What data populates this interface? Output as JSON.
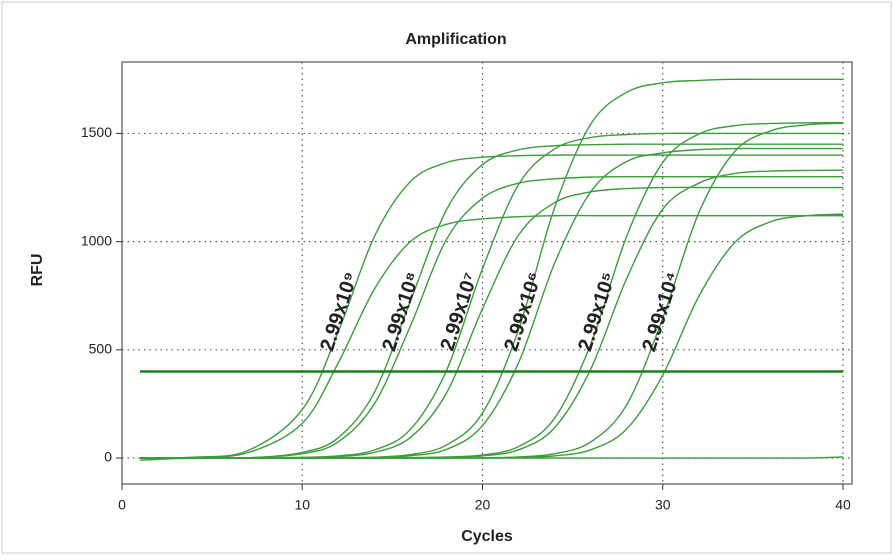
{
  "chart_data": {
    "type": "line",
    "title": "Amplification",
    "xlabel": "Cycles",
    "ylabel": "RFU",
    "x": [
      1,
      4,
      7,
      10,
      12,
      14,
      16,
      18,
      20,
      22,
      24,
      26,
      28,
      30,
      32,
      34,
      36,
      38,
      40
    ],
    "xlim": [
      0,
      40.5
    ],
    "xticks": [
      0,
      10,
      20,
      30,
      40
    ],
    "ylim": [
      -120,
      1830
    ],
    "yticks": [
      0,
      500,
      1000,
      1500
    ],
    "grid": true,
    "threshold": 400,
    "threshold_color": "#178217",
    "series": [
      {
        "color": "#3c9c3c",
        "values": [
          0,
          4,
          35,
          224,
          584,
          1023,
          1277,
          1365,
          1390,
          1397,
          1400,
          1400,
          1400,
          1400,
          1400,
          1400,
          1400,
          1400,
          1400
        ]
      },
      {
        "color": "#3c9c3c",
        "values": [
          0,
          3,
          25,
          160,
          440,
          780,
          1000,
          1080,
          1105,
          1115,
          1120,
          1120,
          1120,
          1120,
          1120,
          1120,
          1120,
          1120,
          1120
        ]
      },
      {
        "color": "#3c9c3c",
        "values": [
          0,
          0,
          1,
          26,
          94,
          303,
          725,
          1147,
          1356,
          1424,
          1443,
          1448,
          1450,
          1450,
          1450,
          1450,
          1450,
          1450,
          1450
        ]
      },
      {
        "color": "#3c9c3c",
        "values": [
          0,
          0,
          1,
          20,
          75,
          250,
          610,
          1010,
          1200,
          1270,
          1290,
          1298,
          1300,
          1300,
          1300,
          1300,
          1300,
          1300,
          1300
        ]
      },
      {
        "color": "#3c9c3c",
        "values": [
          0,
          0,
          0,
          3,
          10,
          37,
          132,
          404,
          875,
          1264,
          1428,
          1481,
          1495,
          1500,
          1500,
          1500,
          1500,
          1500,
          1500
        ]
      },
      {
        "color": "#3c9c3c",
        "values": [
          0,
          0,
          0,
          2,
          7,
          26,
          95,
          300,
          690,
          1030,
          1180,
          1230,
          1245,
          1250,
          1250,
          1250,
          1250,
          1250,
          1250
        ]
      },
      {
        "color": "#3c9c3c",
        "values": [
          0,
          0,
          0,
          0,
          2,
          4,
          16,
          60,
          208,
          593,
          1157,
          1542,
          1690,
          1734,
          1745,
          1750,
          1750,
          1750,
          1750
        ]
      },
      {
        "color": "#3c9c3c",
        "values": [
          0,
          0,
          0,
          0,
          1,
          3,
          11,
          40,
          150,
          440,
          900,
          1230,
          1370,
          1410,
          1425,
          1430,
          1430,
          1430,
          1430
        ]
      },
      {
        "color": "#3c9c3c",
        "values": [
          0,
          0,
          0,
          0,
          0,
          0,
          2,
          5,
          14,
          53,
          184,
          525,
          1025,
          1366,
          1497,
          1536,
          1546,
          1549,
          1550
        ]
      },
      {
        "color": "#3c9c3c",
        "values": [
          0,
          0,
          0,
          0,
          0,
          0,
          1,
          3,
          10,
          38,
          140,
          410,
          830,
          1150,
          1270,
          1315,
          1326,
          1329,
          1330
        ]
      },
      {
        "color": "#3c9c3c",
        "values": [
          0,
          0,
          0,
          0,
          0,
          0,
          0,
          0,
          1,
          5,
          20,
          74,
          246,
          646,
          1133,
          1417,
          1512,
          1540,
          1547
        ]
      },
      {
        "color": "#3c9c3c",
        "values": [
          0,
          0,
          0,
          0,
          0,
          0,
          0,
          0,
          0,
          3,
          10,
          38,
          134,
          383,
          747,
          996,
          1092,
          1120,
          1127
        ]
      },
      {
        "color": "#3c9c3c",
        "values": [
          -10,
          0,
          0,
          0,
          0,
          0,
          0,
          0,
          0,
          0,
          0,
          0,
          0,
          0,
          0,
          0,
          0,
          0,
          5
        ]
      }
    ],
    "annotations": [
      "2.99x10⁹",
      "2.99x10⁸",
      "2.99x10⁷",
      "2.99x10⁶",
      "2.99x10⁵",
      "2.99x10⁴"
    ]
  }
}
